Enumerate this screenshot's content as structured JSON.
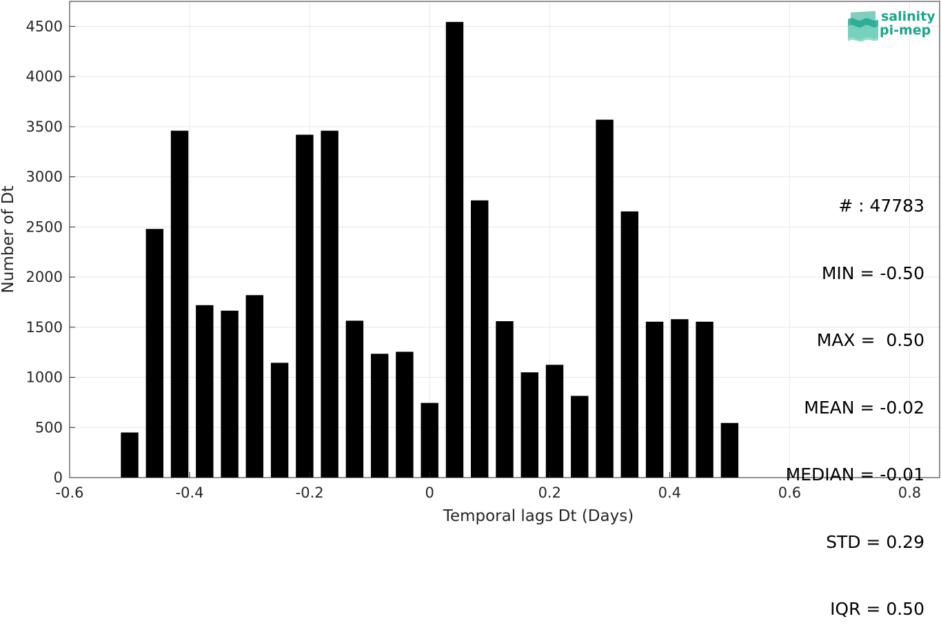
{
  "chart_data": {
    "type": "bar",
    "title": "",
    "xlabel": "Temporal lags Dt (Days)",
    "ylabel": "Number of Dt",
    "xlim": [
      -0.6,
      0.85
    ],
    "ylim": [
      0,
      4750
    ],
    "xticks": [
      -0.6,
      -0.4,
      -0.2,
      0,
      0.2,
      0.4,
      0.6,
      0.8
    ],
    "xtick_labels": [
      "-0.6",
      "-0.4",
      "-0.2",
      "0",
      "0.2",
      "0.4",
      "0.6",
      "0.8"
    ],
    "yticks": [
      0,
      500,
      1000,
      1500,
      2000,
      2500,
      3000,
      3500,
      4000,
      4500
    ],
    "ytick_labels": [
      "0",
      "500",
      "1000",
      "1500",
      "2000",
      "2500",
      "3000",
      "3500",
      "4000",
      "4500"
    ],
    "grid": true,
    "bar_color": "#000000",
    "bar_width": 0.0292,
    "x": [
      -0.5,
      -0.4583,
      -0.4167,
      -0.375,
      -0.3333,
      -0.2917,
      -0.25,
      -0.2083,
      -0.1667,
      -0.125,
      -0.0833,
      -0.0417,
      0,
      0.0417,
      0.0833,
      0.125,
      0.1667,
      0.2083,
      0.25,
      0.2917,
      0.3333,
      0.375,
      0.4167,
      0.4583,
      0.5
    ],
    "values": [
      450,
      2480,
      3460,
      1720,
      1665,
      1820,
      1145,
      3420,
      3460,
      1565,
      1235,
      1255,
      745,
      4545,
      2765,
      1560,
      1050,
      1125,
      815,
      3570,
      2655,
      1555,
      1580,
      1555,
      545
    ]
  },
  "stats": {
    "lines": [
      "# : 47783",
      "MIN = -0.50",
      "MAX =  0.50",
      "MEAN = -0.02",
      "MEDIAN = -0.01",
      "STD = 0.29",
      "IQR = 0.50"
    ]
  },
  "logo": {
    "line1": "salinity",
    "line2": "pi-mep",
    "color": "#1aa58c"
  }
}
